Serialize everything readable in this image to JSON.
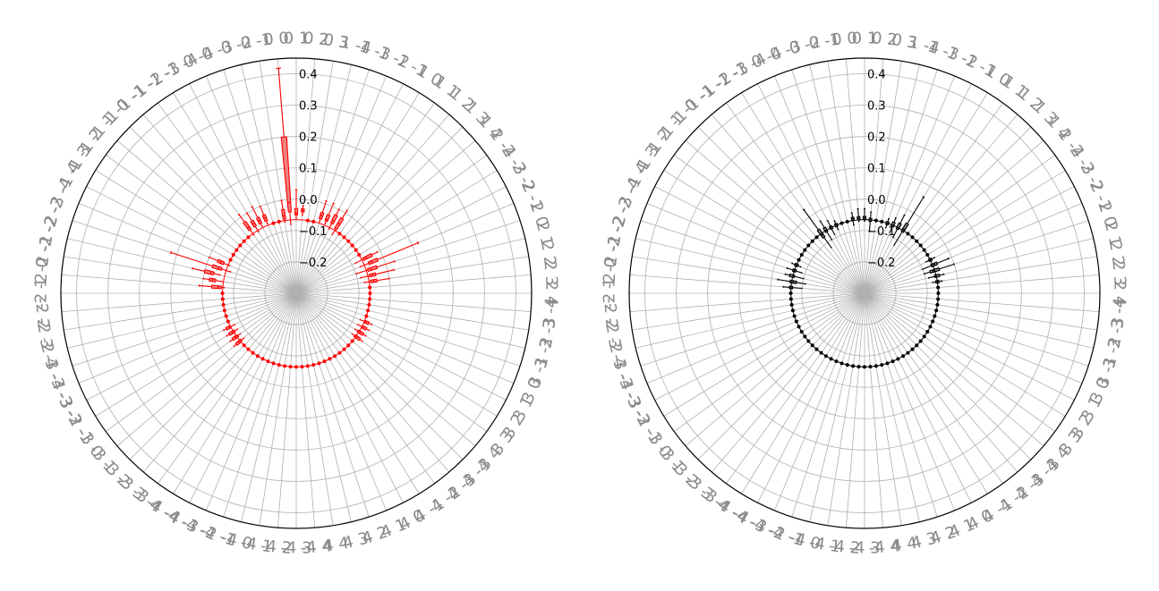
{
  "charts": [
    {
      "type": "radial-boxplot",
      "color": "#ff0000",
      "facecolor": "#f08080",
      "radial_ticks": [
        "−0.2",
        "−0.1",
        "0.0",
        "0.1",
        "0.2",
        "0.3",
        "0.4"
      ],
      "rlim": [
        -0.3,
        0.45
      ],
      "grid": true,
      "outer_labels": [
        "0 1",
        "0 2",
        "0 3",
        "1 -4",
        "1 -3",
        "1 -2",
        "1 -1",
        "1 0",
        "1 1",
        "1 2",
        "1 3",
        "1 4",
        "2 -4",
        "2 -3",
        "2 -2",
        "2 -1",
        "2 0",
        "2 1",
        "2 2",
        "2 3",
        "2 4",
        "3 -4",
        "3 -3",
        "3 -2",
        "3 -1",
        "3 0",
        "3 1",
        "3 2",
        "3 3",
        "3 4",
        "4 -4",
        "4 -3",
        "4 -2",
        "4 -1",
        "4 0",
        "4 1",
        "4 2",
        "4 3",
        "4 4",
        "-4 4",
        "-4 3",
        "-4 2",
        "-4 1",
        "-4 0",
        "-4 -1",
        "-4 -2",
        "-4 -3",
        "-4 -4",
        "-3 4",
        "-3 3",
        "-3 2",
        "-3 1",
        "-3 0",
        "-3 -1",
        "-3 -2",
        "-3 -3",
        "-3 -4",
        "-2 4",
        "-2 3",
        "-2 2",
        "-2 1",
        "-2 0",
        "-2 -1",
        "-2 -2",
        "-2 -3",
        "-2 -4",
        "-1 4",
        "-1 3",
        "-1 2",
        "-1 1",
        "-1 0",
        "-1 -1",
        "-1 -2",
        "-1 -3",
        "-1 -4",
        "0 -4",
        "0 -3",
        "0 -2",
        "0 -1",
        "0 0"
      ],
      "chart_data": {
        "boxes": [
          {
            "index": 0,
            "whislo": -0.06,
            "q1": -0.05,
            "med": -0.045,
            "q3": -0.03,
            "whishi": 0.03
          },
          {
            "index": 1,
            "whislo": -0.05,
            "q1": -0.04,
            "med": -0.035,
            "q3": -0.03,
            "whishi": -0.02
          },
          {
            "index": 4,
            "whislo": -0.06,
            "q1": -0.05,
            "med": -0.04,
            "q3": -0.03,
            "whishi": 0.01
          },
          {
            "index": 5,
            "whislo": -0.06,
            "q1": -0.05,
            "med": -0.045,
            "q3": -0.03,
            "whishi": 0.01
          },
          {
            "index": 6,
            "whislo": -0.07,
            "q1": -0.05,
            "med": -0.04,
            "q3": -0.02,
            "whishi": 0.0
          },
          {
            "index": 7,
            "whislo": -0.08,
            "q1": -0.06,
            "med": -0.04,
            "q3": -0.02,
            "whishi": 0.01
          },
          {
            "index": 14,
            "whislo": -0.09,
            "q1": -0.06,
            "med": -0.05,
            "q3": -0.03,
            "whishi": -0.01
          },
          {
            "index": 15,
            "whislo": -0.08,
            "q1": -0.05,
            "med": -0.04,
            "q3": -0.02,
            "whishi": 0.12
          },
          {
            "index": 16,
            "whislo": -0.1,
            "q1": -0.06,
            "med": -0.05,
            "q3": -0.03,
            "whishi": 0.03
          },
          {
            "index": 17,
            "whislo": -0.09,
            "q1": -0.06,
            "med": -0.05,
            "q3": -0.04,
            "whishi": 0.02
          },
          {
            "index": 18,
            "whislo": -0.08,
            "q1": -0.06,
            "med": -0.05,
            "q3": -0.04,
            "whishi": 0.0
          },
          {
            "index": 25,
            "whislo": -0.08,
            "q1": -0.065,
            "med": -0.06,
            "q3": -0.05,
            "whishi": -0.04
          },
          {
            "index": 26,
            "whislo": -0.08,
            "q1": -0.065,
            "med": -0.06,
            "q3": -0.05,
            "whishi": -0.04
          },
          {
            "index": 27,
            "whislo": -0.08,
            "q1": -0.07,
            "med": -0.06,
            "q3": -0.05,
            "whishi": -0.04
          },
          {
            "index": 28,
            "whislo": -0.08,
            "q1": -0.07,
            "med": -0.06,
            "q3": -0.05,
            "whishi": -0.04
          },
          {
            "index": 51,
            "whislo": -0.08,
            "q1": -0.07,
            "med": -0.06,
            "q3": -0.05,
            "whishi": -0.04
          },
          {
            "index": 52,
            "whislo": -0.08,
            "q1": -0.07,
            "med": -0.06,
            "q3": -0.05,
            "whishi": -0.04
          },
          {
            "index": 53,
            "whislo": -0.08,
            "q1": -0.07,
            "med": -0.06,
            "q3": -0.05,
            "whishi": -0.04
          },
          {
            "index": 54,
            "whislo": -0.08,
            "q1": -0.065,
            "med": -0.06,
            "q3": -0.05,
            "whishi": -0.04
          },
          {
            "index": 61,
            "whislo": -0.07,
            "q1": -0.06,
            "med": -0.05,
            "q3": -0.03,
            "whishi": 0.01
          },
          {
            "index": 62,
            "whislo": -0.06,
            "q1": -0.04,
            "med": -0.03,
            "q3": -0.02,
            "whishi": 0.0
          },
          {
            "index": 63,
            "whislo": -0.05,
            "q1": -0.03,
            "med": -0.02,
            "q3": 0.0,
            "whishi": 0.04
          },
          {
            "index": 64,
            "whislo": -0.08,
            "q1": -0.05,
            "med": -0.04,
            "q3": -0.02,
            "whishi": 0.12
          },
          {
            "index": 65,
            "whislo": -0.07,
            "q1": -0.05,
            "med": -0.04,
            "q3": -0.03,
            "whishi": 0.0
          },
          {
            "index": 72,
            "whislo": -0.07,
            "q1": -0.05,
            "med": -0.04,
            "q3": -0.02,
            "whishi": 0.01
          },
          {
            "index": 73,
            "whislo": -0.07,
            "q1": -0.05,
            "med": -0.04,
            "q3": -0.03,
            "whishi": 0.0
          },
          {
            "index": 74,
            "whislo": -0.06,
            "q1": -0.05,
            "med": -0.04,
            "q3": -0.03,
            "whishi": 0.01
          },
          {
            "index": 75,
            "whislo": -0.06,
            "q1": -0.05,
            "med": -0.04,
            "q3": -0.03,
            "whishi": 0.0
          },
          {
            "index": 78,
            "whislo": -0.07,
            "q1": -0.06,
            "med": -0.05,
            "q3": -0.03,
            "whishi": 0.0
          },
          {
            "index": 79,
            "whislo": -0.08,
            "q1": -0.04,
            "med": -0.01,
            "q3": 0.2,
            "whishi": 0.42
          }
        ],
        "flat_median": -0.065
      }
    },
    {
      "type": "radial-boxplot",
      "color": "#000000",
      "facecolor": "#808080",
      "radial_ticks": [
        "−0.2",
        "−0.1",
        "0.0",
        "0.1",
        "0.2",
        "0.3",
        "0.4"
      ],
      "rlim": [
        -0.3,
        0.45
      ],
      "grid": true,
      "outer_labels": [
        "0 1",
        "0 2",
        "0 3",
        "1 -4",
        "1 -3",
        "1 -2",
        "1 -1",
        "1 0",
        "1 1",
        "1 2",
        "1 3",
        "1 4",
        "2 -4",
        "2 -3",
        "2 -2",
        "2 -1",
        "2 0",
        "2 1",
        "2 2",
        "2 3",
        "2 4",
        "3 -4",
        "3 -3",
        "3 -2",
        "3 -1",
        "3 0",
        "3 1",
        "3 2",
        "3 3",
        "3 4",
        "4 -4",
        "4 -3",
        "4 -2",
        "4 -1",
        "4 0",
        "4 1",
        "4 2",
        "4 3",
        "4 4",
        "-4 4",
        "-4 3",
        "-4 2",
        "-4 1",
        "-4 0",
        "-4 -1",
        "-4 -2",
        "-4 -3",
        "-4 -4",
        "-3 4",
        "-3 3",
        "-3 2",
        "-3 1",
        "-3 0",
        "-3 -1",
        "-3 -2",
        "-3 -3",
        "-3 -4",
        "-2 4",
        "-2 3",
        "-2 2",
        "-2 1",
        "-2 0",
        "-2 -1",
        "-2 -2",
        "-2 -3",
        "-2 -4",
        "-1 4",
        "-1 3",
        "-1 2",
        "-1 1",
        "-1 0",
        "-1 -1",
        "-1 -2",
        "-1 -3",
        "-1 -4",
        "0 -4",
        "0 -3",
        "0 -2",
        "0 -1",
        "0 0"
      ],
      "chart_data": {
        "boxes": [
          {
            "index": 0,
            "whislo": -0.07,
            "q1": -0.065,
            "med": -0.06,
            "q3": -0.055,
            "whishi": -0.03
          },
          {
            "index": 1,
            "whislo": -0.1,
            "q1": -0.07,
            "med": -0.065,
            "q3": -0.06,
            "whishi": -0.04
          },
          {
            "index": 4,
            "whislo": -0.08,
            "q1": -0.07,
            "med": -0.065,
            "q3": -0.06,
            "whishi": -0.05
          },
          {
            "index": 5,
            "whislo": -0.09,
            "q1": -0.07,
            "med": -0.065,
            "q3": -0.055,
            "whishi": -0.04
          },
          {
            "index": 6,
            "whislo": -0.1,
            "q1": -0.07,
            "med": -0.065,
            "q3": -0.05,
            "whishi": -0.02
          },
          {
            "index": 7,
            "whislo": -0.12,
            "q1": -0.07,
            "med": -0.06,
            "q3": -0.04,
            "whishi": 0.06
          },
          {
            "index": 14,
            "whislo": -0.08,
            "q1": -0.07,
            "med": -0.065,
            "q3": -0.06,
            "whishi": -0.05
          },
          {
            "index": 15,
            "whislo": -0.1,
            "q1": -0.07,
            "med": -0.06,
            "q3": -0.05,
            "whishi": -0.01
          },
          {
            "index": 16,
            "whislo": -0.1,
            "q1": -0.08,
            "med": -0.07,
            "q3": -0.05,
            "whishi": 0.0
          },
          {
            "index": 17,
            "whislo": -0.09,
            "q1": -0.07,
            "med": -0.065,
            "q3": -0.055,
            "whishi": -0.04
          },
          {
            "index": 18,
            "whislo": -0.08,
            "q1": -0.07,
            "med": -0.065,
            "q3": -0.06,
            "whishi": -0.05
          },
          {
            "index": 61,
            "whislo": -0.1,
            "q1": -0.07,
            "med": -0.065,
            "q3": -0.06,
            "whishi": -0.04
          },
          {
            "index": 62,
            "whislo": -0.11,
            "q1": -0.08,
            "med": -0.07,
            "q3": -0.06,
            "whishi": -0.02
          },
          {
            "index": 63,
            "whislo": -0.1,
            "q1": -0.07,
            "med": -0.065,
            "q3": -0.055,
            "whishi": -0.04
          },
          {
            "index": 64,
            "whislo": -0.09,
            "q1": -0.07,
            "med": -0.065,
            "q3": -0.06,
            "whishi": -0.04
          },
          {
            "index": 65,
            "whislo": -0.08,
            "q1": -0.07,
            "med": -0.065,
            "q3": -0.06,
            "whishi": -0.05
          },
          {
            "index": 72,
            "whislo": -0.12,
            "q1": -0.08,
            "med": -0.07,
            "q3": -0.05,
            "whishi": 0.03
          },
          {
            "index": 73,
            "whislo": -0.1,
            "q1": -0.07,
            "med": -0.065,
            "q3": -0.055,
            "whishi": -0.03
          },
          {
            "index": 74,
            "whislo": -0.09,
            "q1": -0.07,
            "med": -0.065,
            "q3": -0.06,
            "whishi": -0.04
          },
          {
            "index": 75,
            "whislo": -0.08,
            "q1": -0.07,
            "med": -0.065,
            "q3": -0.06,
            "whishi": -0.05
          },
          {
            "index": 78,
            "whislo": -0.08,
            "q1": -0.065,
            "med": -0.06,
            "q3": -0.055,
            "whishi": -0.04
          },
          {
            "index": 79,
            "whislo": -0.07,
            "q1": -0.065,
            "med": -0.06,
            "q3": -0.055,
            "whishi": -0.03
          }
        ],
        "flat_median": -0.065
      }
    }
  ]
}
